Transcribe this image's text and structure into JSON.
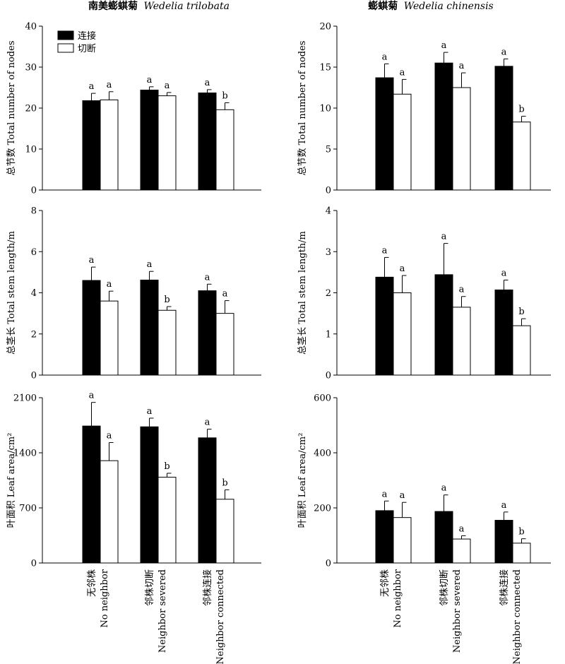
{
  "figure": {
    "columns": [
      {
        "title_cn": "南美蟛蜞菊",
        "title_latin": "Wedelia trilobata"
      },
      {
        "title_cn": "蟛蜞菊",
        "title_latin": "Wedelia chinensis"
      }
    ],
    "legend": [
      {
        "label": "连接",
        "color": "#000000"
      },
      {
        "label": "切断",
        "color": "#ffffff"
      }
    ],
    "categories": [
      {
        "cn": "无邻株",
        "en": "No neighbor"
      },
      {
        "cn": "邻株切断",
        "en": "Neighbor severed"
      },
      {
        "cn": "邻株连接",
        "en": "Neighbor connected"
      }
    ],
    "row_ylabels": [
      "总节数 Total number of nodes",
      "总茎长 Total stem length/m",
      "叶面积   Leaf area/cm²"
    ]
  },
  "chart_data": [
    {
      "type": "bar",
      "title": "南美蟛蜞菊 Wedelia trilobata",
      "ylabel": "总节数 Total number of nodes",
      "ylim": [
        0,
        40
      ],
      "yticks": [
        0,
        10,
        20,
        30,
        40
      ],
      "categories": [
        "无邻株 No neighbor",
        "邻株切断 Neighbor severed",
        "邻株连接 Neighbor connected"
      ],
      "series": [
        {
          "name": "连接",
          "values": [
            21.8,
            24.4,
            23.7
          ],
          "errors": [
            1.8,
            0.8,
            0.8
          ],
          "letters": [
            "a",
            "a",
            "a"
          ]
        },
        {
          "name": "切断",
          "values": [
            22.0,
            23.0,
            19.6
          ],
          "errors": [
            2.0,
            0.8,
            1.7
          ],
          "letters": [
            "a",
            "a",
            "b"
          ]
        }
      ]
    },
    {
      "type": "bar",
      "title": "蟛蜞菊 Wedelia chinensis",
      "ylabel": "总节数 Total number of nodes",
      "ylim": [
        0,
        20
      ],
      "yticks": [
        0,
        5,
        10,
        15,
        20
      ],
      "categories": [
        "无邻株 No neighbor",
        "邻株切断 Neighbor severed",
        "邻株连接 Neighbor connected"
      ],
      "series": [
        {
          "name": "连接",
          "values": [
            13.7,
            15.5,
            15.1
          ],
          "errors": [
            1.7,
            1.3,
            0.9
          ],
          "letters": [
            "a",
            "a",
            "a"
          ]
        },
        {
          "name": "切断",
          "values": [
            11.7,
            12.5,
            8.3
          ],
          "errors": [
            1.8,
            1.8,
            0.7
          ],
          "letters": [
            "a",
            "a",
            "b"
          ]
        }
      ]
    },
    {
      "type": "bar",
      "ylabel": "总茎长 Total stem length/m",
      "ylim": [
        0,
        8
      ],
      "yticks": [
        0,
        2,
        4,
        6,
        8
      ],
      "categories": [
        "无邻株 No neighbor",
        "邻株切断 Neighbor severed",
        "邻株连接 Neighbor connected"
      ],
      "series": [
        {
          "name": "连接",
          "values": [
            4.6,
            4.62,
            4.1
          ],
          "errors": [
            0.65,
            0.42,
            0.32
          ],
          "letters": [
            "a",
            "a",
            "a"
          ]
        },
        {
          "name": "切断",
          "values": [
            3.6,
            3.15,
            3.0
          ],
          "errors": [
            0.48,
            0.18,
            0.62
          ],
          "letters": [
            "a",
            "b",
            "a"
          ]
        }
      ]
    },
    {
      "type": "bar",
      "ylabel": "总茎长 Total stem length/m",
      "ylim": [
        0,
        4
      ],
      "yticks": [
        0,
        1,
        2,
        3,
        4
      ],
      "categories": [
        "无邻株 No neighbor",
        "邻株切断 Neighbor severed",
        "邻株连接 Neighbor connected"
      ],
      "series": [
        {
          "name": "连接",
          "values": [
            2.38,
            2.44,
            2.07
          ],
          "errors": [
            0.48,
            0.76,
            0.24
          ],
          "letters": [
            "a",
            "a",
            "a"
          ]
        },
        {
          "name": "切断",
          "values": [
            2.0,
            1.65,
            1.2
          ],
          "errors": [
            0.42,
            0.26,
            0.17
          ],
          "letters": [
            "a",
            "a",
            "b"
          ]
        }
      ]
    },
    {
      "type": "bar",
      "ylabel": "叶面积   Leaf area/cm²",
      "ylim": [
        0,
        2100
      ],
      "yticks": [
        0,
        700,
        1400,
        2100
      ],
      "categories": [
        "无邻株 No neighbor",
        "邻株切断 Neighbor severed",
        "邻株连接 Neighbor connected"
      ],
      "series": [
        {
          "name": "连接",
          "values": [
            1740,
            1730,
            1590
          ],
          "errors": [
            300,
            110,
            110
          ],
          "letters": [
            "a",
            "a",
            "a"
          ]
        },
        {
          "name": "切断",
          "values": [
            1300,
            1090,
            810
          ],
          "errors": [
            230,
            50,
            120
          ],
          "letters": [
            "a",
            "b",
            "b"
          ]
        }
      ]
    },
    {
      "type": "bar",
      "ylabel": "叶面积   Leaf area/cm²",
      "ylim": [
        0,
        600
      ],
      "yticks": [
        0,
        200,
        400,
        600
      ],
      "categories": [
        "无邻株 No neighbor",
        "邻株切断 Neighbor severed",
        "邻株连接 Neighbor connected"
      ],
      "series": [
        {
          "name": "连接",
          "values": [
            190,
            187,
            155
          ],
          "errors": [
            35,
            60,
            30
          ],
          "letters": [
            "a",
            "a",
            "a"
          ]
        },
        {
          "name": "切断",
          "values": [
            165,
            87,
            72
          ],
          "errors": [
            55,
            12,
            16
          ],
          "letters": [
            "a",
            "a",
            "b"
          ]
        }
      ]
    }
  ]
}
